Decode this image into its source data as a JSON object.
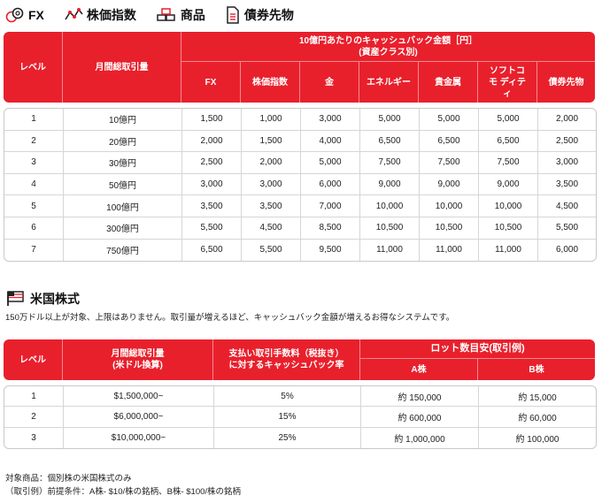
{
  "categories": [
    {
      "label": "FX",
      "icon": "coins-icon"
    },
    {
      "label": "株価指数",
      "icon": "line-chart-icon"
    },
    {
      "label": "商品",
      "icon": "commodity-bars-icon"
    },
    {
      "label": "債券先物",
      "icon": "document-icon"
    }
  ],
  "table1": {
    "level_header": "レベル",
    "volume_header": "月間総取引量",
    "group_header_line1": "10億円あたりのキャッシュバック金額［円］",
    "group_header_line2": "(資産クラス別)",
    "asset_headers": [
      "FX",
      "株価指数",
      "金",
      "エネルギー",
      "貴金属",
      "ソフトコモ ディティ",
      "債券先物"
    ],
    "rows": [
      {
        "level": "1",
        "volume": "10億円",
        "values": [
          "1,500",
          "1,000",
          "3,000",
          "5,000",
          "5,000",
          "5,000",
          "2,000"
        ]
      },
      {
        "level": "2",
        "volume": "20億円",
        "values": [
          "2,000",
          "1,500",
          "4,000",
          "6,500",
          "6,500",
          "6,500",
          "2,500"
        ]
      },
      {
        "level": "3",
        "volume": "30億円",
        "values": [
          "2,500",
          "2,000",
          "5,000",
          "7,500",
          "7,500",
          "7,500",
          "3,000"
        ]
      },
      {
        "level": "4",
        "volume": "50億円",
        "values": [
          "3,000",
          "3,000",
          "6,000",
          "9,000",
          "9,000",
          "9,000",
          "3,500"
        ]
      },
      {
        "level": "5",
        "volume": "100億円",
        "values": [
          "3,500",
          "3,500",
          "7,000",
          "10,000",
          "10,000",
          "10,000",
          "4,500"
        ]
      },
      {
        "level": "6",
        "volume": "300億円",
        "values": [
          "5,500",
          "4,500",
          "8,500",
          "10,500",
          "10,500",
          "10,500",
          "5,500"
        ]
      },
      {
        "level": "7",
        "volume": "750億円",
        "values": [
          "6,500",
          "5,500",
          "9,500",
          "11,000",
          "11,000",
          "11,000",
          "6,000"
        ]
      }
    ]
  },
  "us_section": {
    "title": "米国株式",
    "description": "150万ドル以上が対象、上限はありません。取引量が増えるほど、キャッシュバック金額が増えるお得なシステムです。"
  },
  "table2": {
    "level_header": "レベル",
    "volume_header_line1": "月間総取引量",
    "volume_header_line2": "(米ドル換算)",
    "rate_header_line1": "支払い取引手数料（税抜き）",
    "rate_header_line2": "に対するキャッシュバック率",
    "lot_header": "ロット数目安(取引例)",
    "lot_a_header": "A株",
    "lot_b_header": "B株",
    "rows": [
      {
        "level": "1",
        "volume": "$1,500,000~",
        "rate": "5%",
        "lot_a": "約 150,000",
        "lot_b": "約 15,000"
      },
      {
        "level": "2",
        "volume": "$6,000,000~",
        "rate": "15%",
        "lot_a": "約 600,000",
        "lot_b": "約 60,000"
      },
      {
        "level": "3",
        "volume": "$10,000,000~",
        "rate": "25%",
        "lot_a": "約 1,000,000",
        "lot_b": "約 100,000"
      }
    ]
  },
  "notes": [
    "対象商品：個別株の米国株式のみ",
    "（取引例）前提条件：A株- $10/株の銘柄、B株- $100/株の銘柄"
  ],
  "colors": {
    "accent": "#e8202c",
    "border": "#c8c8c8"
  }
}
